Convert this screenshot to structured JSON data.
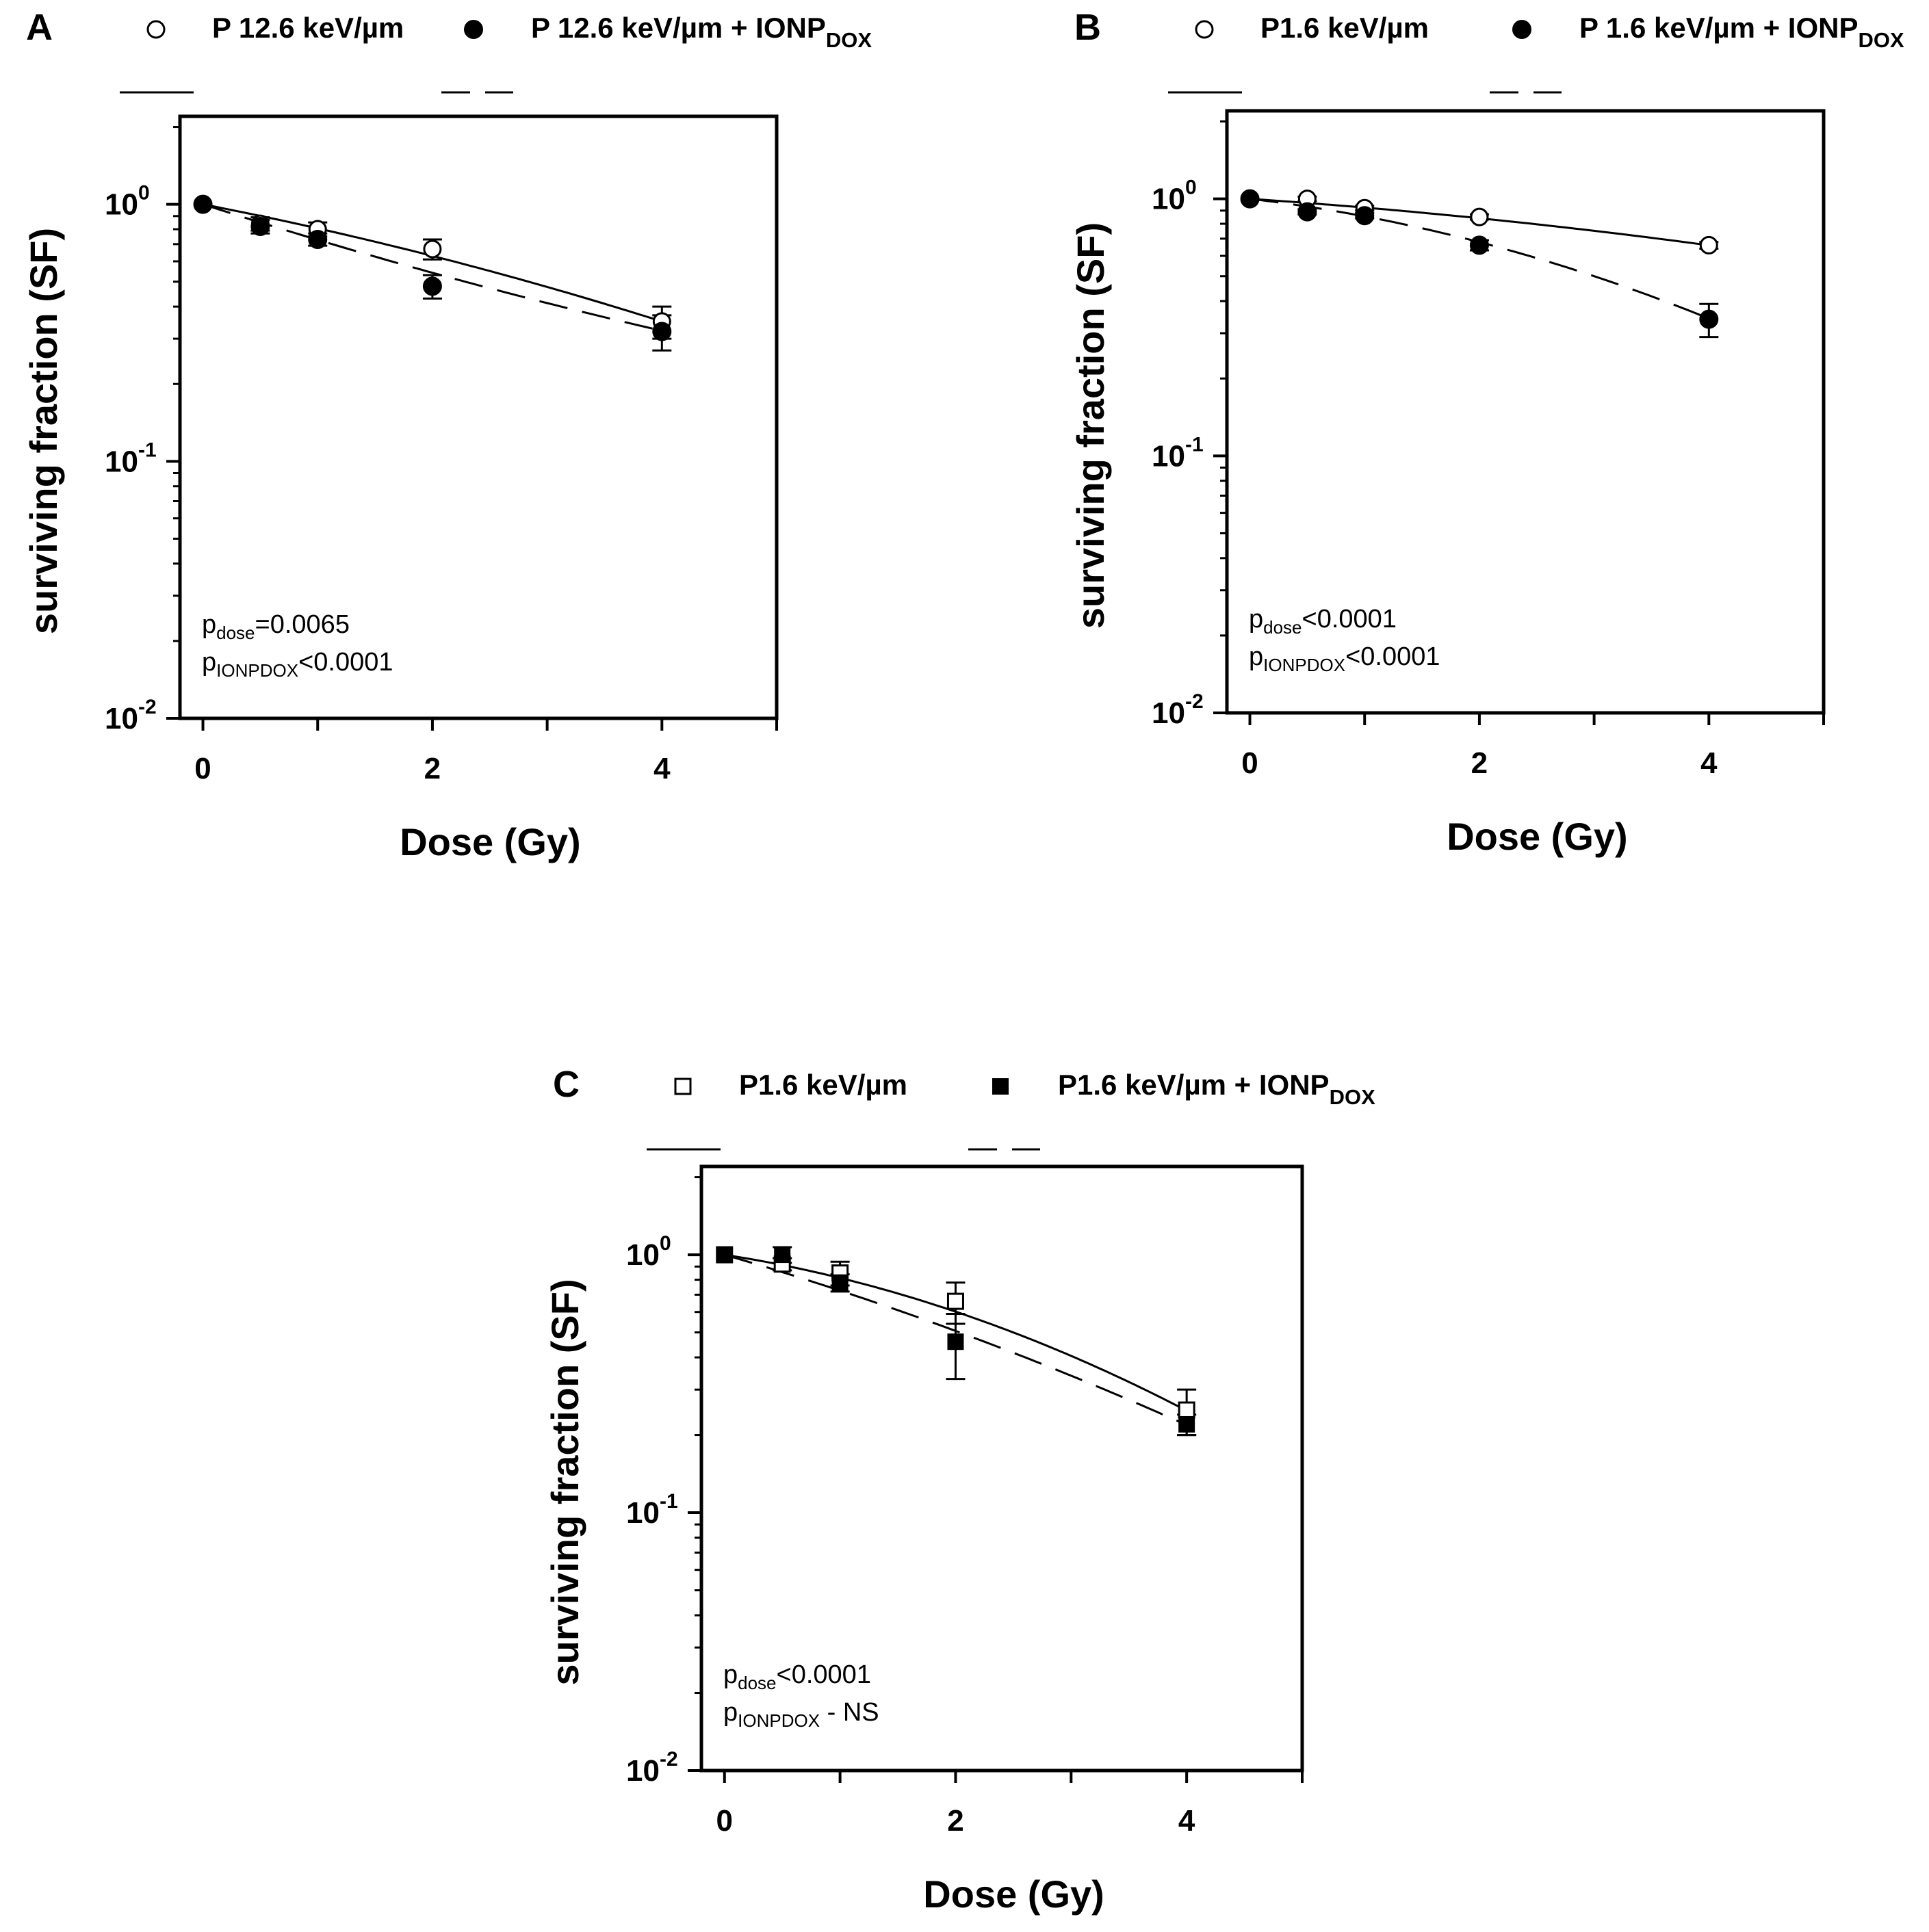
{
  "colors": {
    "foreground": "#000000",
    "background": "#ffffff"
  },
  "chart_data": [
    {
      "id": "A",
      "type": "scatter",
      "panel_label": "A",
      "xlabel": "Dose (Gy)",
      "ylabel": "surviving fraction (SF)",
      "xlim": [
        -0.2,
        5
      ],
      "xticks": [
        0,
        1,
        2,
        3,
        4,
        5
      ],
      "xtick_labels": [
        "0",
        "",
        "2",
        "",
        "4",
        ""
      ],
      "yscale": "log",
      "ylim": [
        0.01,
        2.2
      ],
      "yticks": [
        {
          "base": "10",
          "exp": "0",
          "value": 1
        },
        {
          "base": "10",
          "exp": "-1",
          "value": 0.1
        },
        {
          "base": "10",
          "exp": "-2",
          "value": 0.01
        }
      ],
      "series": [
        {
          "name": "P 12.6 keV/µm",
          "legend_main": "P 12.6 keV/µm",
          "legend_sub": "",
          "marker": "open-circle",
          "line": "solid",
          "x": [
            0,
            0.5,
            1,
            2,
            4
          ],
          "y": [
            1.0,
            0.84,
            0.8,
            0.67,
            0.35
          ],
          "err": [
            0,
            0.05,
            0.05,
            0.06,
            0.05
          ],
          "fit": {
            "alpha": 0.2,
            "beta": 0.0156
          }
        },
        {
          "name": "P 12.6 keV/µm + IONPDOX",
          "legend_main": "P 12.6 keV/µm + IONP",
          "legend_sub": "DOX",
          "marker": "filled-circle",
          "line": "dashed",
          "x": [
            0,
            0.5,
            1,
            2,
            4
          ],
          "y": [
            1.0,
            0.82,
            0.73,
            0.48,
            0.32
          ],
          "err": [
            0,
            0.05,
            0.04,
            0.05,
            0.05
          ],
          "fit": {
            "alpha": 0.33,
            "beta": -0.0117
          }
        }
      ],
      "annotations": [
        {
          "main": "p",
          "sub": "dose",
          "rest": "=0.0065"
        },
        {
          "main": "p",
          "sub": "IONPDOX",
          "rest": "<0.0001"
        }
      ]
    },
    {
      "id": "B",
      "type": "scatter",
      "panel_label": "B",
      "xlabel": "Dose (Gy)",
      "ylabel": "surviving fraction (SF)",
      "xlim": [
        -0.2,
        5
      ],
      "xticks": [
        0,
        1,
        2,
        3,
        4,
        5
      ],
      "xtick_labels": [
        "0",
        "",
        "2",
        "",
        "4",
        ""
      ],
      "yscale": "log",
      "ylim": [
        0.01,
        2.2
      ],
      "yticks": [
        {
          "base": "10",
          "exp": "0",
          "value": 1
        },
        {
          "base": "10",
          "exp": "-1",
          "value": 0.1
        },
        {
          "base": "10",
          "exp": "-2",
          "value": 0.01
        }
      ],
      "series": [
        {
          "name": "P1.6 keV/µm",
          "legend_main": "P1.6 keV/µm",
          "legend_sub": "",
          "marker": "open-circle",
          "line": "solid",
          "x": [
            0,
            0.5,
            1,
            2,
            4
          ],
          "y": [
            1.0,
            1.0,
            0.92,
            0.85,
            0.66
          ],
          "err": [
            0,
            0.02,
            0.02,
            0.02,
            0.02
          ],
          "fit": {
            "alpha": 0.07,
            "beta": 0.0085
          }
        },
        {
          "name": "P 1.6 keV/µm + IONPDOX",
          "legend_main": "P 1.6 keV/µm + IONP",
          "legend_sub": "DOX",
          "marker": "filled-circle",
          "line": "dashed",
          "x": [
            0,
            0.5,
            1,
            2,
            4
          ],
          "y": [
            1.0,
            0.89,
            0.86,
            0.66,
            0.34
          ],
          "err": [
            0,
            0.02,
            0.02,
            0.03,
            0.05
          ],
          "fit": {
            "alpha": 0.12,
            "beta": 0.037
          }
        }
      ],
      "annotations": [
        {
          "main": "p",
          "sub": "dose",
          "rest": "<0.0001"
        },
        {
          "main": "p",
          "sub": "IONPDOX",
          "rest": "<0.0001"
        }
      ]
    },
    {
      "id": "C",
      "type": "scatter",
      "panel_label": "C",
      "xlabel": "Dose (Gy)",
      "ylabel": "surviving fraction (SF)",
      "xlim": [
        -0.2,
        5
      ],
      "xticks": [
        0,
        1,
        2,
        3,
        4,
        5
      ],
      "xtick_labels": [
        "0",
        "",
        "2",
        "",
        "4",
        ""
      ],
      "yscale": "log",
      "ylim": [
        0.01,
        2.2
      ],
      "yticks": [
        {
          "base": "10",
          "exp": "0",
          "value": 1
        },
        {
          "base": "10",
          "exp": "-1",
          "value": 0.1
        },
        {
          "base": "10",
          "exp": "-2",
          "value": 0.01
        }
      ],
      "series": [
        {
          "name": "P1.6 keV/µm",
          "legend_main": "P1.6 keV/µm",
          "legend_sub": "",
          "marker": "open-square",
          "line": "solid",
          "x": [
            0,
            0.5,
            1,
            2,
            4
          ],
          "y": [
            1.0,
            0.92,
            0.85,
            0.66,
            0.25
          ],
          "err": [
            0,
            0.05,
            0.09,
            0.12,
            0.05
          ],
          "fit": {
            "alpha": 0.16,
            "beta": 0.047
          }
        },
        {
          "name": "P1.6 keV/µm + IONPDOX",
          "legend_main": "P1.6 keV/µm + IONP",
          "legend_sub": "DOX",
          "marker": "filled-square",
          "line": "dashed",
          "x": [
            0,
            0.5,
            1,
            2,
            4
          ],
          "y": [
            1.0,
            1.0,
            0.78,
            0.46,
            0.22
          ],
          "err": [
            0,
            0.07,
            0.06,
            0.13,
            0.02
          ],
          "fit": {
            "alpha": 0.3,
            "beta": 0.02
          }
        }
      ],
      "annotations": [
        {
          "main": "p",
          "sub": "dose",
          "rest": "<0.0001"
        },
        {
          "main": "p",
          "sub": "IONPDOX",
          "rest": " - NS"
        }
      ]
    }
  ]
}
